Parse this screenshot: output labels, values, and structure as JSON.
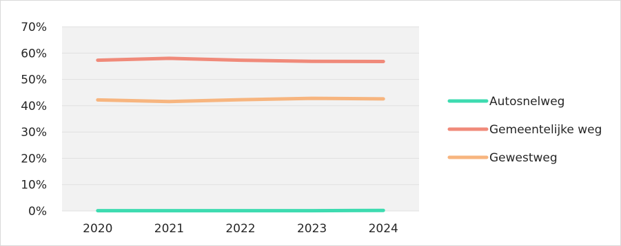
{
  "chart_data": {
    "type": "line",
    "title": "",
    "xlabel": "",
    "ylabel": "",
    "categories": [
      "2020",
      "2021",
      "2022",
      "2023",
      "2024"
    ],
    "y_ticks": [
      "0%",
      "10%",
      "20%",
      "30%",
      "40%",
      "50%",
      "60%",
      "70%"
    ],
    "ylim": [
      0,
      70
    ],
    "grid": true,
    "legend_position": "right",
    "plot_background": "#f2f2f2",
    "series": [
      {
        "name": "Autosnelweg",
        "color": "#3ddbb0",
        "values": [
          0.1,
          0.1,
          0.1,
          0.1,
          0.2
        ]
      },
      {
        "name": "Gemeentelijke weg",
        "color": "#f08a7a",
        "values": [
          57.3,
          58.0,
          57.3,
          56.9,
          56.8
        ]
      },
      {
        "name": "Gewestweg",
        "color": "#f7b57f",
        "values": [
          42.2,
          41.6,
          42.3,
          42.8,
          42.6
        ]
      }
    ]
  }
}
